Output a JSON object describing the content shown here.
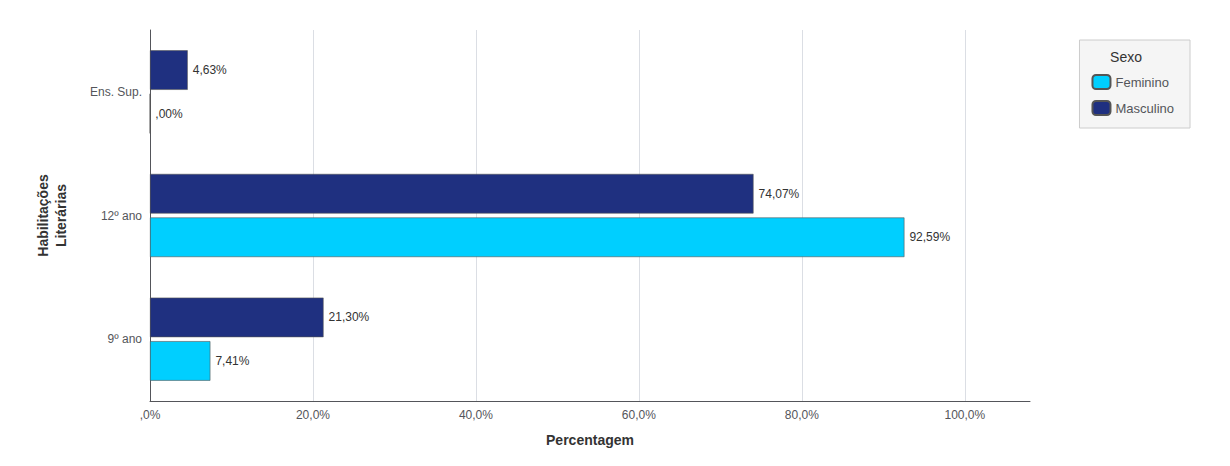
{
  "chart_data": {
    "type": "bar",
    "orientation": "horizontal",
    "categories": [
      "9º ano",
      "12º ano",
      "Ens. Sup."
    ],
    "series": [
      {
        "name": "Masculino",
        "color": "#1F3080",
        "values": [
          21.3,
          74.07,
          4.63
        ],
        "value_labels": [
          "21,30%",
          "74,07%",
          "4,63%"
        ]
      },
      {
        "name": "Feminino",
        "color": "#00CFFF",
        "values": [
          7.41,
          92.59,
          0.0
        ],
        "value_labels": [
          "7,41%",
          "92,59%",
          ",00%"
        ]
      }
    ],
    "xlabel": "Percentagem",
    "ylabel": "Habilitações\nLiterárias",
    "xlim": [
      0,
      108
    ],
    "xticks": [
      {
        "value": 0,
        "label": ",0%"
      },
      {
        "value": 20,
        "label": "20,0%"
      },
      {
        "value": 40,
        "label": "40,0%"
      },
      {
        "value": 60,
        "label": "60,0%"
      },
      {
        "value": 80,
        "label": "80,0%"
      },
      {
        "value": 100,
        "label": "100,0%"
      }
    ],
    "legend": "upper right",
    "legend_title": "Sexo",
    "legend_order": [
      "Feminino",
      "Masculino"
    ],
    "data_labels": true,
    "grid": true
  }
}
